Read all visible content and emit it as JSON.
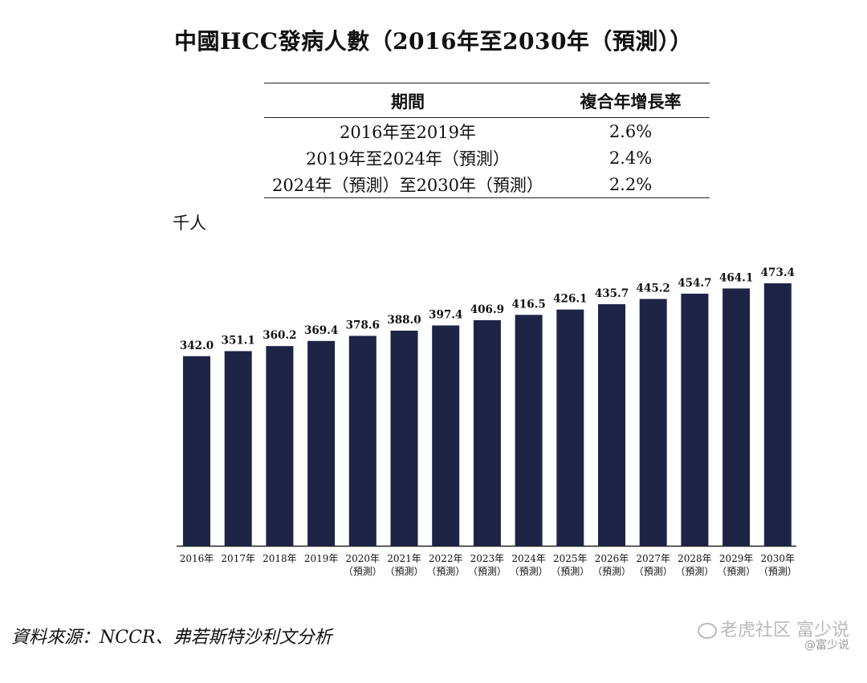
{
  "title": "中國HCC發病人數（2016年至2030年（預測））",
  "cagr_table": {
    "headers": [
      "期間",
      "複合年增長率"
    ],
    "rows": [
      {
        "period": "2016年至2019年",
        "rate": "2.6%"
      },
      {
        "period": "2019年至2024年（預測）",
        "rate": "2.4%"
      },
      {
        "period": "2024年（預測）至2030年（預測）",
        "rate": "2.2%"
      }
    ]
  },
  "chart_data": {
    "type": "bar",
    "unit_label": "千人",
    "categories": [
      [
        "2016年"
      ],
      [
        "2017年"
      ],
      [
        "2018年"
      ],
      [
        "2019年"
      ],
      [
        "2020年",
        "（預測）"
      ],
      [
        "2021年",
        "（預測）"
      ],
      [
        "2022年",
        "（預測）"
      ],
      [
        "2023年",
        "（預測）"
      ],
      [
        "2024年",
        "（預測）"
      ],
      [
        "2025年",
        "（預測）"
      ],
      [
        "2026年",
        "（預測）"
      ],
      [
        "2027年",
        "（預測）"
      ],
      [
        "2028年",
        "（預測）"
      ],
      [
        "2029年",
        "（預測）"
      ],
      [
        "2030年",
        "（預測）"
      ]
    ],
    "values": [
      342.0,
      351.1,
      360.2,
      369.4,
      378.6,
      388.0,
      397.4,
      406.9,
      416.5,
      426.1,
      435.7,
      445.2,
      454.7,
      464.1,
      473.4
    ],
    "value_labels": [
      "342.0",
      "351.1",
      "360.2",
      "369.4",
      "378.6",
      "388.0",
      "397.4",
      "406.9",
      "416.5",
      "426.1",
      "435.7",
      "445.2",
      "454.7",
      "464.1",
      "473.4"
    ],
    "ylim": [
      0,
      473.4
    ],
    "grid": false,
    "bar_color": "#1e2446"
  },
  "source": "資料來源：NCCR、弗若斯特沙利文分析",
  "watermark": {
    "main": "老虎社区 富少说",
    "sub": "@富少说",
    "icon": "wechat-icon"
  }
}
